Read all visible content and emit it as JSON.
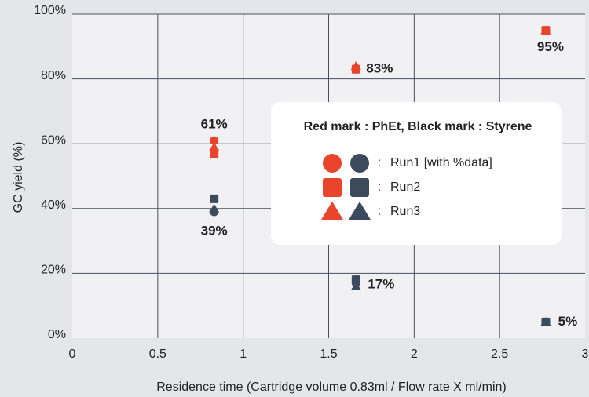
{
  "chart_data": {
    "type": "scatter",
    "x_label": "Residence time (Cartridge volume 0.83ml / Flow rate X ml/min)",
    "y_label": "GC yield (%)",
    "legend_title": "Red mark : PhEt, Black mark : Styrene",
    "legend_separator": ":",
    "x": [
      0.83,
      1.66,
      2.77
    ],
    "series": [
      {
        "name": "Run1 [with %data]",
        "color": "#e8452c",
        "marker": "circle",
        "values": [
          61,
          83,
          95
        ],
        "value_labels": [
          "61%",
          "83%",
          "95%"
        ]
      },
      {
        "name": "Run2",
        "color": "#e8452c",
        "marker": "square",
        "values": [
          57,
          83,
          95
        ]
      },
      {
        "name": "Run3",
        "color": "#e8452c",
        "marker": "triangle",
        "values": [
          59,
          84,
          95
        ]
      },
      {
        "name": "Run1 [with %data]",
        "color": "#3d4a5e",
        "marker": "circle",
        "values": [
          39,
          17,
          5
        ],
        "value_labels": [
          "39%",
          "17%",
          "5%"
        ]
      },
      {
        "name": "Run2",
        "color": "#3d4a5e",
        "marker": "square",
        "values": [
          43,
          18,
          5
        ]
      },
      {
        "name": "Run3",
        "color": "#3d4a5e",
        "marker": "triangle",
        "values": [
          40,
          16,
          5
        ]
      }
    ],
    "xlim": [
      0,
      3
    ],
    "xticks": [
      0,
      0.5,
      1,
      1.5,
      2,
      2.5,
      3
    ],
    "ylim": [
      0,
      100
    ],
    "yticks": [
      {
        "value": 0,
        "label": "0%"
      },
      {
        "value": 20,
        "label": "20%"
      },
      {
        "value": 40,
        "label": "40%"
      },
      {
        "value": 60,
        "label": "60%"
      },
      {
        "value": 80,
        "label": "80%"
      },
      {
        "value": 100,
        "label": "100%"
      }
    ],
    "grid": true
  }
}
